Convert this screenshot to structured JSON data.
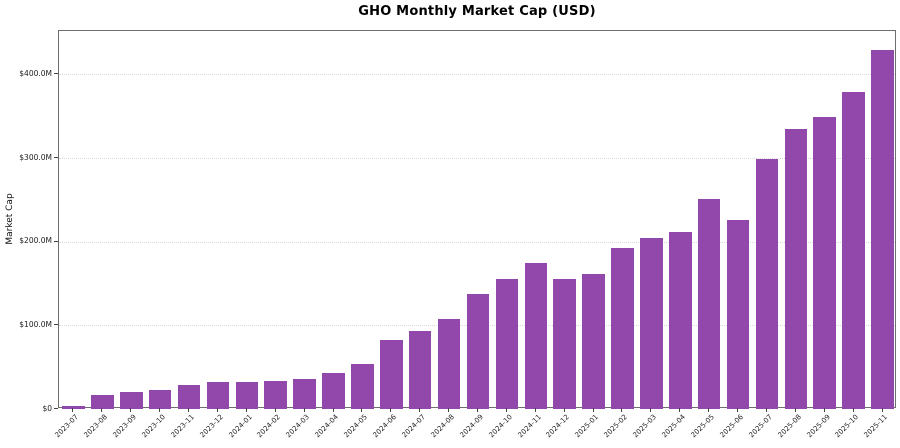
{
  "figure": {
    "title": "GHO Monthly Market Cap (USD)"
  },
  "chart_data": {
    "type": "bar",
    "title": "GHO Monthly Market Cap (USD)",
    "xlabel": "",
    "ylabel": "Market Cap",
    "values_unit": "million USD",
    "categories": [
      "2023-07",
      "2023-08",
      "2023-09",
      "2023-10",
      "2023-11",
      "2023-12",
      "2024-01",
      "2024-02",
      "2024-03",
      "2024-04",
      "2024-05",
      "2024-06",
      "2024-07",
      "2024-08",
      "2024-09",
      "2024-10",
      "2024-11",
      "2024-12",
      "2025-01",
      "2025-02",
      "2025-03",
      "2025-04",
      "2025-05",
      "2025-06",
      "2025-07",
      "2025-08",
      "2025-09",
      "2025-10",
      "2025-11"
    ],
    "values": [
      4,
      17,
      20,
      23,
      29,
      32,
      32,
      33,
      36,
      43,
      54,
      83,
      93,
      108,
      137,
      156,
      175,
      155,
      161,
      192,
      205,
      212,
      251,
      226,
      299,
      335,
      349,
      379,
      429
    ],
    "ylim": [
      0,
      452
    ],
    "yticks": [
      {
        "value": 0,
        "label": "$0"
      },
      {
        "value": 100,
        "label": "$100.0M"
      },
      {
        "value": 200,
        "label": "$200.0M"
      },
      {
        "value": 300,
        "label": "$300.0M"
      },
      {
        "value": 400,
        "label": "$400.0M"
      }
    ],
    "grid": {
      "axis": "y",
      "style": "dotted",
      "color": "#d9d9d9"
    },
    "legend": "none",
    "bar_color": "#9248ab",
    "x_tick_rotation_deg": 45
  }
}
